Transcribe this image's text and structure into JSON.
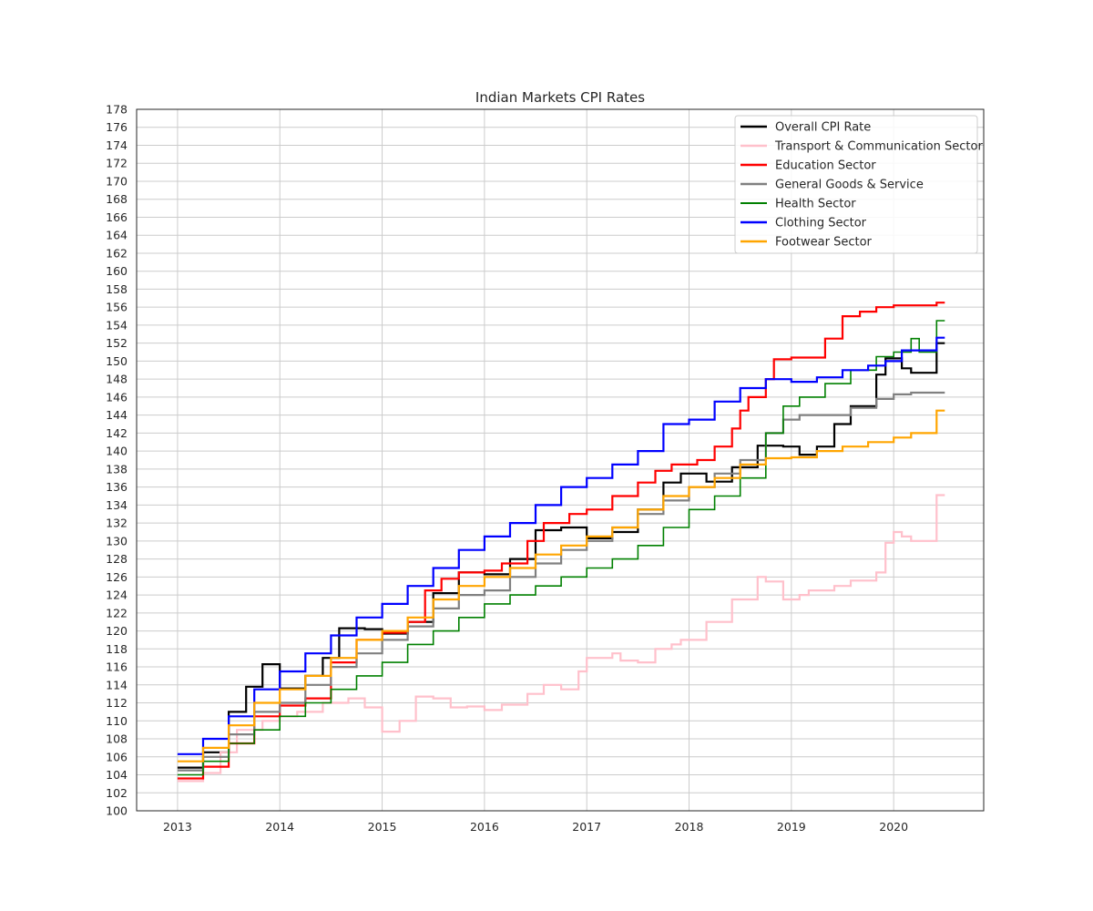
{
  "chart_data": {
    "type": "line",
    "title": "Indian Markets CPI Rates",
    "xlabel": "",
    "ylabel": "",
    "xlim": [
      2012.6,
      2020.88
    ],
    "ylim": [
      100,
      178
    ],
    "x_ticks": [
      2013,
      2014,
      2015,
      2016,
      2017,
      2018,
      2019,
      2020
    ],
    "y_ticks": [
      100,
      102,
      104,
      106,
      108,
      110,
      112,
      114,
      116,
      118,
      120,
      122,
      124,
      126,
      128,
      130,
      132,
      134,
      136,
      138,
      140,
      142,
      144,
      146,
      148,
      150,
      152,
      154,
      156,
      158,
      160,
      162,
      164,
      166,
      168,
      170,
      172,
      174,
      176,
      178
    ],
    "grid": true,
    "legend_position": "top-right",
    "step": "post",
    "series": [
      {
        "name": "Overall CPI Rate",
        "color": "#000000",
        "points": [
          [
            2013.0,
            104.8
          ],
          [
            2013.25,
            106.5
          ],
          [
            2013.5,
            111.0
          ],
          [
            2013.67,
            113.8
          ],
          [
            2013.83,
            116.3
          ],
          [
            2014.0,
            113.6
          ],
          [
            2014.25,
            115.0
          ],
          [
            2014.42,
            117.0
          ],
          [
            2014.58,
            120.3
          ],
          [
            2014.83,
            120.2
          ],
          [
            2015.0,
            119.7
          ],
          [
            2015.25,
            121.0
          ],
          [
            2015.5,
            124.2
          ],
          [
            2015.75,
            126.5
          ],
          [
            2016.0,
            126.3
          ],
          [
            2016.25,
            128.0
          ],
          [
            2016.5,
            131.2
          ],
          [
            2016.75,
            131.5
          ],
          [
            2017.0,
            130.3
          ],
          [
            2017.25,
            131.0
          ],
          [
            2017.5,
            133.5
          ],
          [
            2017.75,
            136.5
          ],
          [
            2017.92,
            137.5
          ],
          [
            2018.17,
            136.6
          ],
          [
            2018.42,
            138.2
          ],
          [
            2018.67,
            140.6
          ],
          [
            2018.92,
            140.5
          ],
          [
            2019.08,
            139.6
          ],
          [
            2019.25,
            140.5
          ],
          [
            2019.42,
            143.0
          ],
          [
            2019.58,
            145.0
          ],
          [
            2019.83,
            148.5
          ],
          [
            2019.92,
            150.3
          ],
          [
            2020.08,
            149.2
          ],
          [
            2020.17,
            148.7
          ],
          [
            2020.42,
            152.0
          ],
          [
            2020.5,
            152.0
          ]
        ]
      },
      {
        "name": "Transport & Communication Sector",
        "color": "#ffc0cb",
        "points": [
          [
            2013.0,
            103.3
          ],
          [
            2013.25,
            104.2
          ],
          [
            2013.42,
            106.5
          ],
          [
            2013.58,
            109.0
          ],
          [
            2013.83,
            110.0
          ],
          [
            2014.0,
            110.5
          ],
          [
            2014.17,
            111.0
          ],
          [
            2014.42,
            112.0
          ],
          [
            2014.67,
            112.5
          ],
          [
            2014.83,
            111.5
          ],
          [
            2015.0,
            108.8
          ],
          [
            2015.17,
            110.0
          ],
          [
            2015.33,
            112.7
          ],
          [
            2015.5,
            112.5
          ],
          [
            2015.67,
            111.5
          ],
          [
            2015.83,
            111.6
          ],
          [
            2016.0,
            111.2
          ],
          [
            2016.17,
            111.8
          ],
          [
            2016.42,
            113.0
          ],
          [
            2016.58,
            114.0
          ],
          [
            2016.75,
            113.5
          ],
          [
            2016.92,
            115.5
          ],
          [
            2017.0,
            117.0
          ],
          [
            2017.25,
            117.5
          ],
          [
            2017.33,
            116.7
          ],
          [
            2017.5,
            116.5
          ],
          [
            2017.67,
            118.0
          ],
          [
            2017.83,
            118.5
          ],
          [
            2017.92,
            119.0
          ],
          [
            2018.17,
            121.0
          ],
          [
            2018.42,
            123.5
          ],
          [
            2018.67,
            126.0
          ],
          [
            2018.75,
            125.5
          ],
          [
            2018.92,
            123.5
          ],
          [
            2019.08,
            124.0
          ],
          [
            2019.17,
            124.5
          ],
          [
            2019.42,
            125.0
          ],
          [
            2019.58,
            125.6
          ],
          [
            2019.83,
            126.5
          ],
          [
            2019.92,
            129.8
          ],
          [
            2020.0,
            131.0
          ],
          [
            2020.08,
            130.5
          ],
          [
            2020.17,
            130.0
          ],
          [
            2020.42,
            135.1
          ],
          [
            2020.5,
            135.1
          ]
        ]
      },
      {
        "name": "Education Sector",
        "color": "#ff0000",
        "points": [
          [
            2013.0,
            103.6
          ],
          [
            2013.25,
            104.9
          ],
          [
            2013.5,
            107.5
          ],
          [
            2013.75,
            110.5
          ],
          [
            2014.0,
            111.7
          ],
          [
            2014.25,
            112.5
          ],
          [
            2014.5,
            116.5
          ],
          [
            2014.75,
            119.0
          ],
          [
            2015.0,
            119.8
          ],
          [
            2015.25,
            121.0
          ],
          [
            2015.42,
            124.5
          ],
          [
            2015.58,
            125.8
          ],
          [
            2015.75,
            126.5
          ],
          [
            2016.0,
            126.7
          ],
          [
            2016.17,
            127.5
          ],
          [
            2016.42,
            130.0
          ],
          [
            2016.58,
            132.0
          ],
          [
            2016.83,
            133.0
          ],
          [
            2017.0,
            133.5
          ],
          [
            2017.25,
            135.0
          ],
          [
            2017.5,
            136.5
          ],
          [
            2017.67,
            137.8
          ],
          [
            2017.83,
            138.5
          ],
          [
            2018.08,
            139.0
          ],
          [
            2018.25,
            140.5
          ],
          [
            2018.42,
            142.5
          ],
          [
            2018.5,
            144.5
          ],
          [
            2018.58,
            146.0
          ],
          [
            2018.75,
            148.0
          ],
          [
            2018.83,
            150.2
          ],
          [
            2019.0,
            150.4
          ],
          [
            2019.33,
            152.5
          ],
          [
            2019.5,
            155.0
          ],
          [
            2019.67,
            155.5
          ],
          [
            2019.83,
            156.0
          ],
          [
            2020.0,
            156.2
          ],
          [
            2020.42,
            156.5
          ],
          [
            2020.5,
            156.5
          ]
        ]
      },
      {
        "name": "General Goods & Service",
        "color": "#808080",
        "points": [
          [
            2013.0,
            104.5
          ],
          [
            2013.25,
            106.0
          ],
          [
            2013.5,
            108.5
          ],
          [
            2013.75,
            111.0
          ],
          [
            2014.0,
            112.0
          ],
          [
            2014.25,
            114.0
          ],
          [
            2014.5,
            116.0
          ],
          [
            2014.75,
            117.5
          ],
          [
            2015.0,
            119.0
          ],
          [
            2015.25,
            120.5
          ],
          [
            2015.5,
            122.5
          ],
          [
            2015.75,
            124.0
          ],
          [
            2016.0,
            124.5
          ],
          [
            2016.25,
            126.0
          ],
          [
            2016.5,
            127.5
          ],
          [
            2016.75,
            129.0
          ],
          [
            2017.0,
            130.0
          ],
          [
            2017.25,
            131.5
          ],
          [
            2017.5,
            133.0
          ],
          [
            2017.75,
            134.5
          ],
          [
            2018.0,
            136.0
          ],
          [
            2018.25,
            137.5
          ],
          [
            2018.5,
            139.0
          ],
          [
            2018.75,
            142.0
          ],
          [
            2018.92,
            143.5
          ],
          [
            2019.08,
            144.0
          ],
          [
            2019.33,
            144.0
          ],
          [
            2019.58,
            144.8
          ],
          [
            2019.83,
            145.8
          ],
          [
            2020.0,
            146.3
          ],
          [
            2020.17,
            146.5
          ],
          [
            2020.5,
            146.5
          ]
        ]
      },
      {
        "name": "Health Sector",
        "color": "#008000",
        "points": [
          [
            2013.0,
            104.0
          ],
          [
            2013.25,
            105.5
          ],
          [
            2013.5,
            107.5
          ],
          [
            2013.75,
            109.0
          ],
          [
            2014.0,
            110.5
          ],
          [
            2014.25,
            112.0
          ],
          [
            2014.5,
            113.5
          ],
          [
            2014.75,
            115.0
          ],
          [
            2015.0,
            116.5
          ],
          [
            2015.25,
            118.5
          ],
          [
            2015.5,
            120.0
          ],
          [
            2015.75,
            121.5
          ],
          [
            2016.0,
            123.0
          ],
          [
            2016.25,
            124.0
          ],
          [
            2016.5,
            125.0
          ],
          [
            2016.75,
            126.0
          ],
          [
            2017.0,
            127.0
          ],
          [
            2017.25,
            128.0
          ],
          [
            2017.5,
            129.5
          ],
          [
            2017.75,
            131.5
          ],
          [
            2018.0,
            133.5
          ],
          [
            2018.25,
            135.0
          ],
          [
            2018.5,
            137.0
          ],
          [
            2018.75,
            142.0
          ],
          [
            2018.92,
            145.0
          ],
          [
            2019.08,
            146.0
          ],
          [
            2019.33,
            147.5
          ],
          [
            2019.58,
            149.0
          ],
          [
            2019.83,
            150.5
          ],
          [
            2020.0,
            151.0
          ],
          [
            2020.17,
            152.5
          ],
          [
            2020.25,
            151.0
          ],
          [
            2020.42,
            154.5
          ],
          [
            2020.5,
            154.5
          ]
        ]
      },
      {
        "name": "Clothing Sector",
        "color": "#0000ff",
        "points": [
          [
            2013.0,
            106.3
          ],
          [
            2013.25,
            108.0
          ],
          [
            2013.5,
            110.5
          ],
          [
            2013.75,
            113.5
          ],
          [
            2014.0,
            115.5
          ],
          [
            2014.25,
            117.5
          ],
          [
            2014.5,
            119.5
          ],
          [
            2014.75,
            121.5
          ],
          [
            2015.0,
            123.0
          ],
          [
            2015.25,
            125.0
          ],
          [
            2015.5,
            127.0
          ],
          [
            2015.75,
            129.0
          ],
          [
            2016.0,
            130.5
          ],
          [
            2016.25,
            132.0
          ],
          [
            2016.5,
            134.0
          ],
          [
            2016.75,
            136.0
          ],
          [
            2017.0,
            137.0
          ],
          [
            2017.25,
            138.5
          ],
          [
            2017.5,
            140.0
          ],
          [
            2017.75,
            143.0
          ],
          [
            2018.0,
            143.5
          ],
          [
            2018.25,
            145.5
          ],
          [
            2018.5,
            147.0
          ],
          [
            2018.75,
            148.0
          ],
          [
            2019.0,
            147.7
          ],
          [
            2019.25,
            148.2
          ],
          [
            2019.5,
            149.0
          ],
          [
            2019.75,
            149.5
          ],
          [
            2019.92,
            150.0
          ],
          [
            2020.08,
            151.2
          ],
          [
            2020.33,
            151.2
          ],
          [
            2020.42,
            152.6
          ],
          [
            2020.5,
            152.6
          ]
        ]
      },
      {
        "name": "Footwear Sector",
        "color": "#ffa500",
        "points": [
          [
            2013.0,
            105.5
          ],
          [
            2013.25,
            107.0
          ],
          [
            2013.5,
            109.5
          ],
          [
            2013.75,
            112.0
          ],
          [
            2014.0,
            113.5
          ],
          [
            2014.25,
            115.0
          ],
          [
            2014.5,
            117.0
          ],
          [
            2014.75,
            119.0
          ],
          [
            2015.0,
            120.0
          ],
          [
            2015.25,
            121.5
          ],
          [
            2015.5,
            123.5
          ],
          [
            2015.75,
            125.0
          ],
          [
            2016.0,
            126.0
          ],
          [
            2016.25,
            127.0
          ],
          [
            2016.5,
            128.5
          ],
          [
            2016.75,
            129.5
          ],
          [
            2017.0,
            130.5
          ],
          [
            2017.25,
            131.5
          ],
          [
            2017.5,
            133.5
          ],
          [
            2017.75,
            135.0
          ],
          [
            2018.0,
            136.0
          ],
          [
            2018.25,
            137.0
          ],
          [
            2018.5,
            138.5
          ],
          [
            2018.75,
            139.2
          ],
          [
            2019.0,
            139.3
          ],
          [
            2019.25,
            140.0
          ],
          [
            2019.5,
            140.5
          ],
          [
            2019.75,
            141.0
          ],
          [
            2020.0,
            141.5
          ],
          [
            2020.17,
            142.0
          ],
          [
            2020.42,
            144.5
          ],
          [
            2020.5,
            144.5
          ]
        ]
      }
    ]
  }
}
